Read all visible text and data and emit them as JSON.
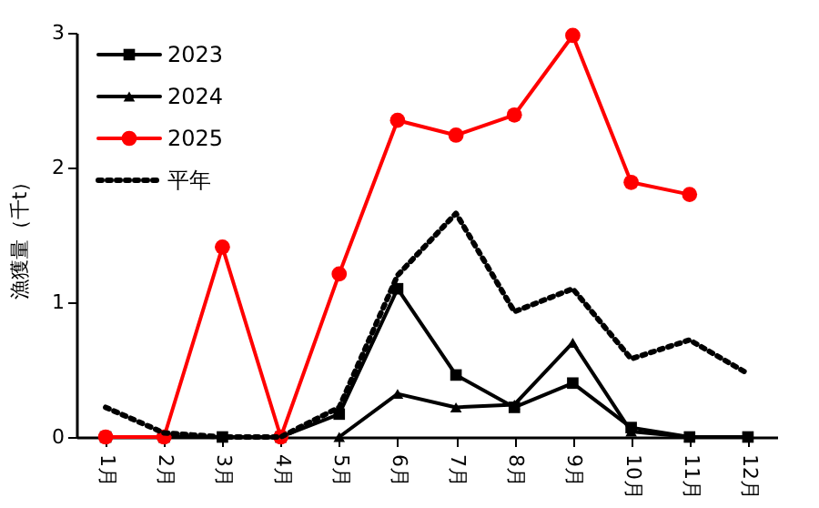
{
  "chart_data": {
    "type": "line",
    "ylabel": "漁獲量（千t）",
    "categories": [
      "1月",
      "2月",
      "3月",
      "4月",
      "5月",
      "6月",
      "7月",
      "8月",
      "9月",
      "10月",
      "11月",
      "12月"
    ],
    "ylim": [
      0,
      3
    ],
    "yticks": [
      0,
      1,
      2,
      3
    ],
    "grid": false,
    "legend": "top left",
    "series": [
      {
        "name": "2023",
        "color": "#000000",
        "marker": "square",
        "line_style": "solid",
        "values": [
          0,
          0,
          0,
          0,
          0.17,
          1.1,
          0.46,
          0.22,
          0.4,
          0.07,
          0,
          0
        ]
      },
      {
        "name": "2024",
        "color": "#000000",
        "marker": "triangle",
        "line_style": "solid",
        "values": [
          null,
          null,
          null,
          null,
          0,
          0.32,
          0.22,
          0.24,
          0.7,
          0.04,
          0,
          null
        ]
      },
      {
        "name": "2025",
        "color": "#ff0000",
        "marker": "circle",
        "line_style": "solid",
        "values": [
          0,
          0,
          1.41,
          0,
          1.21,
          2.35,
          2.24,
          2.39,
          2.98,
          1.89,
          1.8,
          null
        ]
      },
      {
        "name": "平年",
        "color": "#000000",
        "marker": "none",
        "line_style": "dotted",
        "values": [
          0.22,
          0.03,
          0,
          0,
          0.22,
          1.2,
          1.66,
          0.93,
          1.1,
          0.58,
          0.72,
          0.47
        ]
      }
    ]
  }
}
